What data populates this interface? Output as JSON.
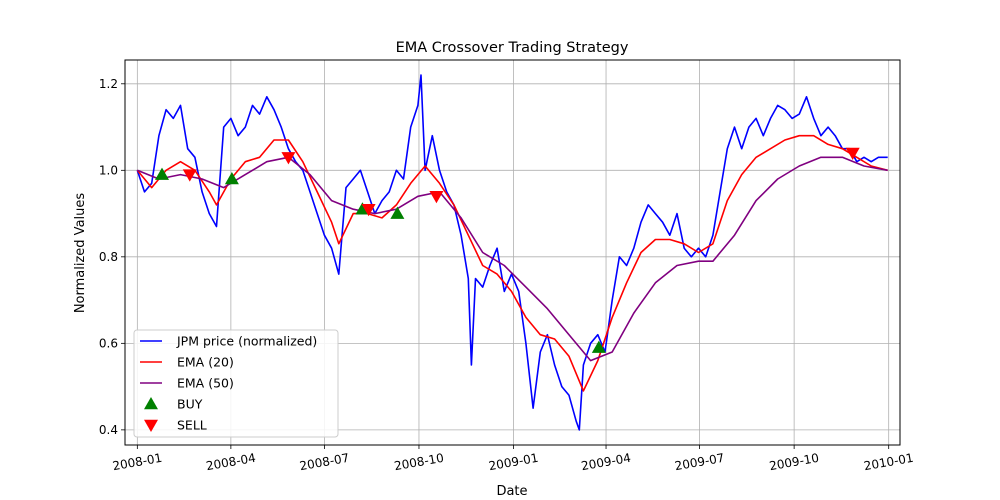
{
  "chart_data": {
    "type": "line",
    "title": "EMA Crossover Trading Strategy",
    "xlabel": "Date",
    "ylabel": "Normalized Values",
    "xlim": [
      "2007-12-20",
      "2010-01-12"
    ],
    "ylim": [
      0.365,
      1.255
    ],
    "x_ticks": [
      "2008-01-01",
      "2008-04-01",
      "2008-07-01",
      "2008-10-01",
      "2009-01-01",
      "2009-04-01",
      "2009-07-01",
      "2009-10-01",
      "2010-01-01"
    ],
    "x_tick_labels": [
      "2008-01",
      "2008-04",
      "2008-07",
      "2008-10",
      "2009-01",
      "2009-04",
      "2009-07",
      "2009-10",
      "2010-01"
    ],
    "y_ticks": [
      0.4,
      0.6,
      0.8,
      1.0,
      1.2
    ],
    "y_tick_labels": [
      "0.4",
      "0.6",
      "0.8",
      "1.0",
      "1.2"
    ],
    "grid": true,
    "legend_position": "lower-left",
    "series": [
      {
        "name": "JPM price (normalized)",
        "color": "#0000ff",
        "points": [
          [
            "2008-01-01",
            1.0
          ],
          [
            "2008-01-08",
            0.95
          ],
          [
            "2008-01-15",
            0.97
          ],
          [
            "2008-01-22",
            1.08
          ],
          [
            "2008-01-29",
            1.14
          ],
          [
            "2008-02-05",
            1.12
          ],
          [
            "2008-02-12",
            1.15
          ],
          [
            "2008-02-19",
            1.05
          ],
          [
            "2008-02-26",
            1.03
          ],
          [
            "2008-03-04",
            0.95
          ],
          [
            "2008-03-11",
            0.9
          ],
          [
            "2008-03-18",
            0.87
          ],
          [
            "2008-03-25",
            1.1
          ],
          [
            "2008-04-01",
            1.12
          ],
          [
            "2008-04-08",
            1.08
          ],
          [
            "2008-04-15",
            1.1
          ],
          [
            "2008-04-22",
            1.15
          ],
          [
            "2008-04-29",
            1.13
          ],
          [
            "2008-05-06",
            1.17
          ],
          [
            "2008-05-13",
            1.14
          ],
          [
            "2008-05-20",
            1.1
          ],
          [
            "2008-05-27",
            1.05
          ],
          [
            "2008-06-03",
            1.02
          ],
          [
            "2008-06-10",
            1.0
          ],
          [
            "2008-06-17",
            0.95
          ],
          [
            "2008-06-24",
            0.9
          ],
          [
            "2008-07-01",
            0.85
          ],
          [
            "2008-07-08",
            0.82
          ],
          [
            "2008-07-15",
            0.76
          ],
          [
            "2008-07-22",
            0.96
          ],
          [
            "2008-07-29",
            0.98
          ],
          [
            "2008-08-05",
            1.0
          ],
          [
            "2008-08-12",
            0.95
          ],
          [
            "2008-08-19",
            0.9
          ],
          [
            "2008-08-26",
            0.93
          ],
          [
            "2008-09-02",
            0.95
          ],
          [
            "2008-09-09",
            1.0
          ],
          [
            "2008-09-16",
            0.98
          ],
          [
            "2008-09-23",
            1.1
          ],
          [
            "2008-09-30",
            1.15
          ],
          [
            "2008-10-03",
            1.22
          ],
          [
            "2008-10-07",
            1.0
          ],
          [
            "2008-10-14",
            1.08
          ],
          [
            "2008-10-21",
            1.0
          ],
          [
            "2008-10-28",
            0.95
          ],
          [
            "2008-11-04",
            0.92
          ],
          [
            "2008-11-11",
            0.85
          ],
          [
            "2008-11-18",
            0.75
          ],
          [
            "2008-11-21",
            0.55
          ],
          [
            "2008-11-25",
            0.75
          ],
          [
            "2008-12-02",
            0.73
          ],
          [
            "2008-12-09",
            0.78
          ],
          [
            "2008-12-16",
            0.82
          ],
          [
            "2008-12-23",
            0.72
          ],
          [
            "2008-12-30",
            0.76
          ],
          [
            "2009-01-06",
            0.72
          ],
          [
            "2009-01-13",
            0.6
          ],
          [
            "2009-01-20",
            0.45
          ],
          [
            "2009-01-27",
            0.58
          ],
          [
            "2009-02-03",
            0.62
          ],
          [
            "2009-02-10",
            0.55
          ],
          [
            "2009-02-17",
            0.5
          ],
          [
            "2009-02-24",
            0.48
          ],
          [
            "2009-03-03",
            0.42
          ],
          [
            "2009-03-06",
            0.4
          ],
          [
            "2009-03-10",
            0.55
          ],
          [
            "2009-03-17",
            0.6
          ],
          [
            "2009-03-24",
            0.62
          ],
          [
            "2009-03-31",
            0.58
          ],
          [
            "2009-04-07",
            0.7
          ],
          [
            "2009-04-14",
            0.8
          ],
          [
            "2009-04-21",
            0.78
          ],
          [
            "2009-04-28",
            0.82
          ],
          [
            "2009-05-05",
            0.88
          ],
          [
            "2009-05-12",
            0.92
          ],
          [
            "2009-05-19",
            0.9
          ],
          [
            "2009-05-26",
            0.88
          ],
          [
            "2009-06-02",
            0.85
          ],
          [
            "2009-06-09",
            0.9
          ],
          [
            "2009-06-16",
            0.82
          ],
          [
            "2009-06-23",
            0.8
          ],
          [
            "2009-06-30",
            0.82
          ],
          [
            "2009-07-07",
            0.8
          ],
          [
            "2009-07-14",
            0.85
          ],
          [
            "2009-07-21",
            0.95
          ],
          [
            "2009-07-28",
            1.05
          ],
          [
            "2009-08-04",
            1.1
          ],
          [
            "2009-08-11",
            1.05
          ],
          [
            "2009-08-18",
            1.1
          ],
          [
            "2009-08-25",
            1.12
          ],
          [
            "2009-09-01",
            1.08
          ],
          [
            "2009-09-08",
            1.12
          ],
          [
            "2009-09-15",
            1.15
          ],
          [
            "2009-09-22",
            1.14
          ],
          [
            "2009-09-29",
            1.12
          ],
          [
            "2009-10-06",
            1.13
          ],
          [
            "2009-10-13",
            1.17
          ],
          [
            "2009-10-20",
            1.12
          ],
          [
            "2009-10-27",
            1.08
          ],
          [
            "2009-11-03",
            1.1
          ],
          [
            "2009-11-10",
            1.08
          ],
          [
            "2009-11-17",
            1.05
          ],
          [
            "2009-11-24",
            1.05
          ],
          [
            "2009-12-01",
            1.02
          ],
          [
            "2009-12-08",
            1.03
          ],
          [
            "2009-12-15",
            1.02
          ],
          [
            "2009-12-22",
            1.03
          ],
          [
            "2009-12-31",
            1.03
          ]
        ]
      },
      {
        "name": "EMA (20)",
        "color": "#ff0000",
        "points": [
          [
            "2008-01-01",
            1.0
          ],
          [
            "2008-01-15",
            0.96
          ],
          [
            "2008-01-29",
            1.0
          ],
          [
            "2008-02-12",
            1.02
          ],
          [
            "2008-02-26",
            1.0
          ],
          [
            "2008-03-11",
            0.95
          ],
          [
            "2008-03-18",
            0.92
          ],
          [
            "2008-04-01",
            0.98
          ],
          [
            "2008-04-15",
            1.02
          ],
          [
            "2008-04-29",
            1.03
          ],
          [
            "2008-05-13",
            1.07
          ],
          [
            "2008-05-27",
            1.07
          ],
          [
            "2008-06-10",
            1.02
          ],
          [
            "2008-06-24",
            0.95
          ],
          [
            "2008-07-08",
            0.88
          ],
          [
            "2008-07-15",
            0.83
          ],
          [
            "2008-07-29",
            0.9
          ],
          [
            "2008-08-12",
            0.9
          ],
          [
            "2008-08-26",
            0.89
          ],
          [
            "2008-09-09",
            0.92
          ],
          [
            "2008-09-23",
            0.97
          ],
          [
            "2008-10-07",
            1.01
          ],
          [
            "2008-10-21",
            0.97
          ],
          [
            "2008-11-04",
            0.92
          ],
          [
            "2008-11-18",
            0.85
          ],
          [
            "2008-12-02",
            0.78
          ],
          [
            "2008-12-16",
            0.76
          ],
          [
            "2008-12-30",
            0.72
          ],
          [
            "2009-01-13",
            0.66
          ],
          [
            "2009-01-27",
            0.62
          ],
          [
            "2009-02-10",
            0.61
          ],
          [
            "2009-02-24",
            0.57
          ],
          [
            "2009-03-10",
            0.49
          ],
          [
            "2009-03-24",
            0.56
          ],
          [
            "2009-04-07",
            0.66
          ],
          [
            "2009-04-21",
            0.74
          ],
          [
            "2009-05-05",
            0.81
          ],
          [
            "2009-05-19",
            0.84
          ],
          [
            "2009-06-02",
            0.84
          ],
          [
            "2009-06-16",
            0.83
          ],
          [
            "2009-06-30",
            0.81
          ],
          [
            "2009-07-14",
            0.83
          ],
          [
            "2009-07-28",
            0.93
          ],
          [
            "2009-08-11",
            0.99
          ],
          [
            "2009-08-25",
            1.03
          ],
          [
            "2009-09-08",
            1.05
          ],
          [
            "2009-09-22",
            1.07
          ],
          [
            "2009-10-06",
            1.08
          ],
          [
            "2009-10-20",
            1.08
          ],
          [
            "2009-11-03",
            1.06
          ],
          [
            "2009-11-17",
            1.05
          ],
          [
            "2009-12-01",
            1.03
          ],
          [
            "2009-12-15",
            1.01
          ],
          [
            "2009-12-31",
            1.0
          ]
        ]
      },
      {
        "name": "EMA (50)",
        "color": "#800080",
        "points": [
          [
            "2008-01-01",
            1.0
          ],
          [
            "2008-01-22",
            0.98
          ],
          [
            "2008-02-12",
            0.99
          ],
          [
            "2008-03-04",
            0.98
          ],
          [
            "2008-03-25",
            0.96
          ],
          [
            "2008-04-15",
            0.99
          ],
          [
            "2008-05-06",
            1.02
          ],
          [
            "2008-05-27",
            1.03
          ],
          [
            "2008-06-17",
            0.99
          ],
          [
            "2008-07-08",
            0.93
          ],
          [
            "2008-07-29",
            0.91
          ],
          [
            "2008-08-19",
            0.9
          ],
          [
            "2008-09-09",
            0.91
          ],
          [
            "2008-09-30",
            0.94
          ],
          [
            "2008-10-21",
            0.95
          ],
          [
            "2008-11-11",
            0.89
          ],
          [
            "2008-12-02",
            0.81
          ],
          [
            "2008-12-23",
            0.78
          ],
          [
            "2009-01-13",
            0.73
          ],
          [
            "2009-02-03",
            0.68
          ],
          [
            "2009-02-24",
            0.62
          ],
          [
            "2009-03-17",
            0.56
          ],
          [
            "2009-04-07",
            0.58
          ],
          [
            "2009-04-28",
            0.67
          ],
          [
            "2009-05-19",
            0.74
          ],
          [
            "2009-06-09",
            0.78
          ],
          [
            "2009-06-30",
            0.79
          ],
          [
            "2009-07-14",
            0.79
          ],
          [
            "2009-08-04",
            0.85
          ],
          [
            "2009-08-25",
            0.93
          ],
          [
            "2009-09-15",
            0.98
          ],
          [
            "2009-10-06",
            1.01
          ],
          [
            "2009-10-27",
            1.03
          ],
          [
            "2009-11-17",
            1.03
          ],
          [
            "2009-12-08",
            1.01
          ],
          [
            "2009-12-31",
            1.0
          ]
        ]
      }
    ],
    "signals": {
      "buy": {
        "name": "BUY",
        "color": "#008000",
        "marker": "triangle-up",
        "points": [
          [
            "2008-01-25",
            0.99
          ],
          [
            "2008-04-02",
            0.98
          ],
          [
            "2008-08-07",
            0.91
          ],
          [
            "2008-09-10",
            0.9
          ],
          [
            "2009-03-25",
            0.59
          ]
        ]
      },
      "sell": {
        "name": "SELL",
        "color": "#ff0000",
        "marker": "triangle-down",
        "points": [
          [
            "2008-02-21",
            0.99
          ],
          [
            "2008-05-27",
            1.03
          ],
          [
            "2008-08-13",
            0.91
          ],
          [
            "2008-10-18",
            0.94
          ],
          [
            "2009-11-27",
            1.04
          ]
        ]
      }
    }
  }
}
